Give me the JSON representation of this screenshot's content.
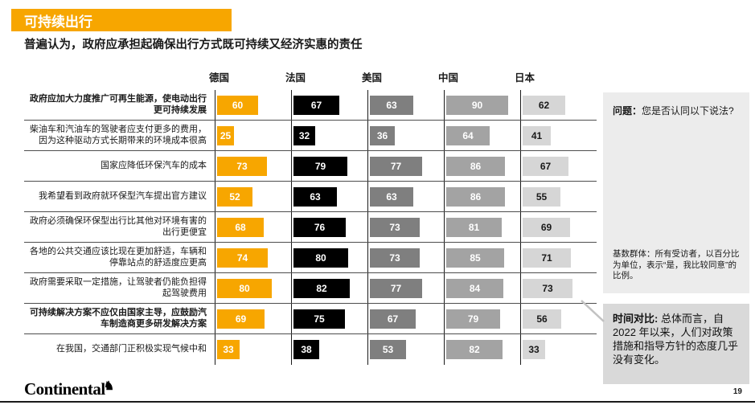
{
  "page": {
    "title": "可持续出行",
    "subtitle": "普遍认为，政府应承担起确保出行方式既可持续又经济实惠的责任",
    "page_number": "19",
    "logo_text": "Continental",
    "logo_horse_icon": "♞"
  },
  "colors": {
    "accent_orange": "#F7A600",
    "bar_germany": "#F7A600",
    "bar_france": "#000000",
    "bar_usa": "#7F7F7F",
    "bar_china": "#A3A3A3",
    "bar_japan": "#D6D6D6",
    "sidebar_box1_bg": "#ECECEC",
    "sidebar_box2_bg": "#D9D9D9"
  },
  "sidebar": {
    "question_label": "问题：",
    "question_text": "您是否认同以下说法?",
    "base_note": "基数群体：所有受访者，以百分比为单位，表示“是，我比较同意”的比例。",
    "time_label": "时间对比:",
    "time_text": " 总体而言，自 2022 年以来，人们对政策措施和指导方针的态度几乎没有变化。"
  },
  "chart_data": {
    "type": "bar",
    "orientation": "horizontal",
    "unit": "percent-agree",
    "value_range": [
      0,
      100
    ],
    "columns": [
      {
        "label": "德国",
        "color": "#F7A600",
        "text_color": "#FFFFFF"
      },
      {
        "label": "法国",
        "color": "#000000",
        "text_color": "#FFFFFF"
      },
      {
        "label": "美国",
        "color": "#7F7F7F",
        "text_color": "#FFFFFF"
      },
      {
        "label": "中国",
        "color": "#A3A3A3",
        "text_color": "#FFFFFF"
      },
      {
        "label": "日本",
        "color": "#D6D6D6",
        "text_color": "#1A1A1A"
      }
    ],
    "rows": [
      {
        "label": "政府应加大力度推广可再生能源，使电动出行更可持续发展",
        "bold": true,
        "values": [
          60,
          67,
          63,
          90,
          62
        ]
      },
      {
        "label": "柴油车和汽油车的驾驶者应支付更多的费用，因为这种驱动方式长期带来的环境成本很高",
        "bold": false,
        "values": [
          25,
          32,
          36,
          64,
          41
        ]
      },
      {
        "label": "国家应降低环保汽车的成本",
        "bold": false,
        "values": [
          73,
          79,
          77,
          86,
          67
        ]
      },
      {
        "label": "我希望看到政府就环保型汽车提出官方建议",
        "bold": false,
        "values": [
          52,
          63,
          63,
          86,
          55
        ]
      },
      {
        "label": "政府必须确保环保型出行比其他对环境有害的出行更便宜",
        "bold": false,
        "values": [
          68,
          76,
          73,
          81,
          69
        ]
      },
      {
        "label": "各地的公共交通应该比现在更加舒适，车辆和停靠站点的舒适度应更高",
        "bold": false,
        "values": [
          74,
          80,
          73,
          85,
          71
        ]
      },
      {
        "label": "政府需要采取一定措施，让驾驶者仍能负担得起驾驶费用",
        "bold": false,
        "values": [
          80,
          82,
          77,
          84,
          73
        ]
      },
      {
        "label": "可持续解决方案不应仅由国家主导，应鼓励汽车制造商更多研发解决方案",
        "bold": true,
        "values": [
          69,
          75,
          67,
          79,
          56
        ]
      },
      {
        "label": "在我国，交通部门正积极实现气候中和",
        "bold": false,
        "values": [
          33,
          38,
          53,
          82,
          33
        ]
      }
    ]
  }
}
